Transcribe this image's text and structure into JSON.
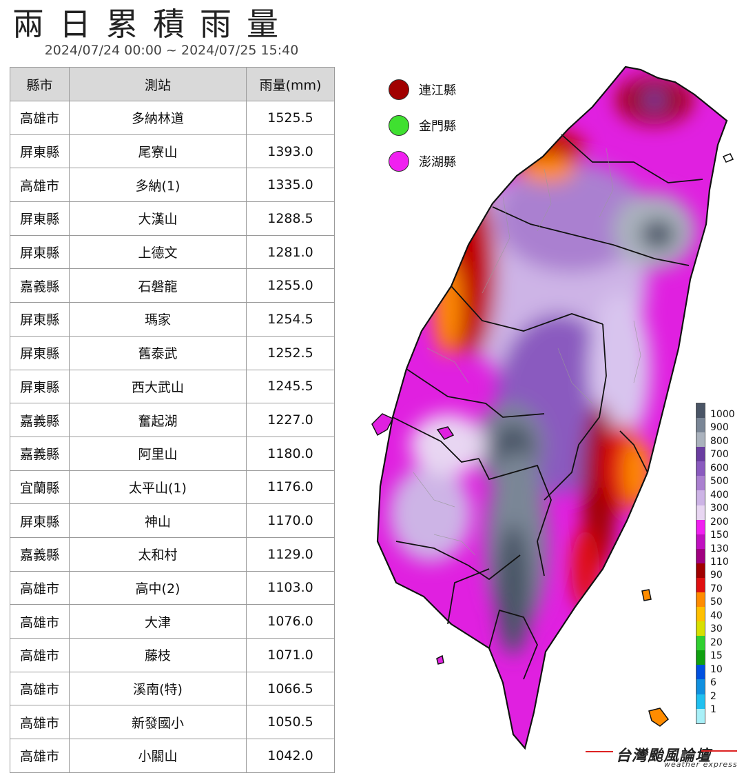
{
  "title": "兩日累積雨量",
  "period": "2024/07/24 00:00 ~ 2024/07/25 15:40",
  "table": {
    "headers": [
      "縣市",
      "測站",
      "雨量(mm)"
    ],
    "rows": [
      [
        "高雄市",
        "多納林道",
        "1525.5"
      ],
      [
        "屏東縣",
        "尾寮山",
        "1393.0"
      ],
      [
        "高雄市",
        "多納(1)",
        "1335.0"
      ],
      [
        "屏東縣",
        "大漢山",
        "1288.5"
      ],
      [
        "屏東縣",
        "上德文",
        "1281.0"
      ],
      [
        "嘉義縣",
        "石磐龍",
        "1255.0"
      ],
      [
        "屏東縣",
        "瑪家",
        "1254.5"
      ],
      [
        "屏東縣",
        "舊泰武",
        "1252.5"
      ],
      [
        "屏東縣",
        "西大武山",
        "1245.5"
      ],
      [
        "嘉義縣",
        "奮起湖",
        "1227.0"
      ],
      [
        "嘉義縣",
        "阿里山",
        "1180.0"
      ],
      [
        "宜蘭縣",
        "太平山(1)",
        "1176.0"
      ],
      [
        "屏東縣",
        "神山",
        "1170.0"
      ],
      [
        "嘉義縣",
        "太和村",
        "1129.0"
      ],
      [
        "高雄市",
        "高中(2)",
        "1103.0"
      ],
      [
        "高雄市",
        "大津",
        "1076.0"
      ],
      [
        "高雄市",
        "藤枝",
        "1071.0"
      ],
      [
        "高雄市",
        "溪南(特)",
        "1066.5"
      ],
      [
        "高雄市",
        "新發國小",
        "1050.5"
      ],
      [
        "高雄市",
        "小關山",
        "1042.0"
      ]
    ]
  },
  "islands": [
    {
      "label": "連江縣",
      "color": "#a10000"
    },
    {
      "label": "金門縣",
      "color": "#3fe030"
    },
    {
      "label": "澎湖縣",
      "color": "#f020f0"
    }
  ],
  "colorbar": {
    "labels": [
      "1000",
      "900",
      "800",
      "700",
      "600",
      "500",
      "400",
      "300",
      "200",
      "150",
      "130",
      "110",
      "90",
      "70",
      "50",
      "40",
      "30",
      "20",
      "15",
      "10",
      "6",
      "2",
      "1"
    ],
    "colors": [
      "#4a5566",
      "#7a8696",
      "#aab2bd",
      "#6a3da0",
      "#8a5abf",
      "#aa80d0",
      "#cdb4e6",
      "#e8d6f2",
      "#f020f0",
      "#c010c0",
      "#a00080",
      "#a00000",
      "#e01010",
      "#ff8c00",
      "#ffc000",
      "#d8e000",
      "#30d030",
      "#10a010",
      "#0050e0",
      "#1090e0",
      "#20c0f0",
      "#a8f0f8"
    ]
  },
  "logo": {
    "main": "台灣颱風論壇",
    "sub": "weather express"
  }
}
